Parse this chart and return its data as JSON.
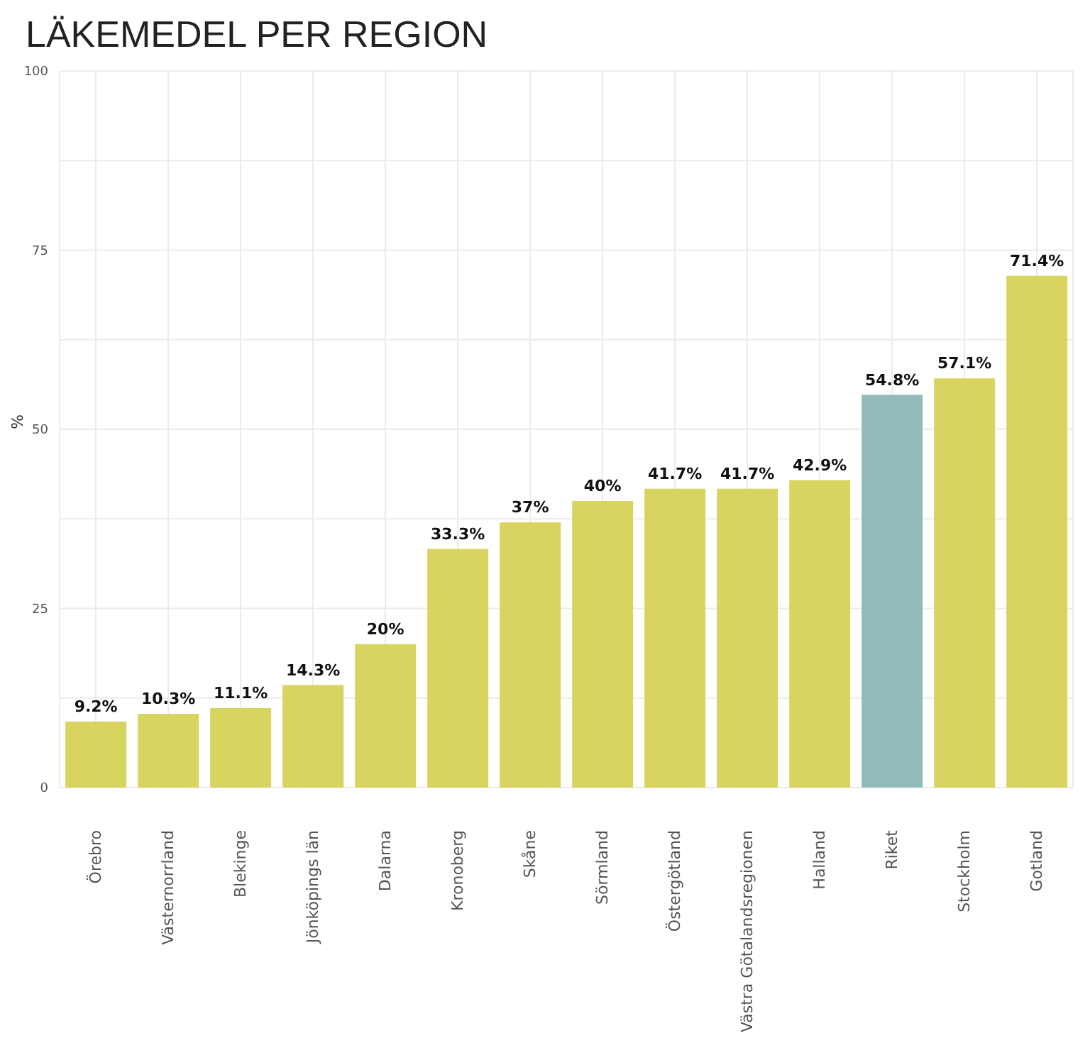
{
  "chart_data": {
    "type": "bar",
    "title": "LÄKEMEDEL PER REGION",
    "ylabel": "%",
    "categories": [
      "Örebro",
      "Västernorrland",
      "Blekinge",
      "Jönköpings län",
      "Dalarna",
      "Kronoberg",
      "Skåne",
      "Sörmland",
      "Östergötland",
      "Västra Götalandsregionen",
      "Halland",
      "Riket",
      "Stockholm",
      "Gotland"
    ],
    "values": [
      9.2,
      10.3,
      11.1,
      14.3,
      20,
      33.3,
      37,
      40,
      41.7,
      41.7,
      42.9,
      54.8,
      57.1,
      71.4
    ],
    "colors": [
      "#d8d460",
      "#d8d460",
      "#d8d460",
      "#d8d460",
      "#d8d460",
      "#d8d460",
      "#d8d460",
      "#d8d460",
      "#d8d460",
      "#d8d460",
      "#d8d460",
      "#91bbbb",
      "#d8d460",
      "#d8d460"
    ],
    "value_labels": [
      "9.2%",
      "10.3%",
      "11.1%",
      "14.3%",
      "20%",
      "33.3%",
      "37%",
      "40%",
      "41.7%",
      "41.7%",
      "42.9%",
      "54.8%",
      "57.1%",
      "71.4%"
    ],
    "ylim": [
      0,
      100
    ],
    "yticks": [
      0,
      {
        "value": 12.5,
        "label": null
      },
      25,
      {
        "value": 37.5,
        "label": null
      },
      50,
      {
        "value": 62.5,
        "label": null
      },
      75,
      {
        "value": 87.5,
        "label": null
      },
      100
    ],
    "grid": true
  }
}
